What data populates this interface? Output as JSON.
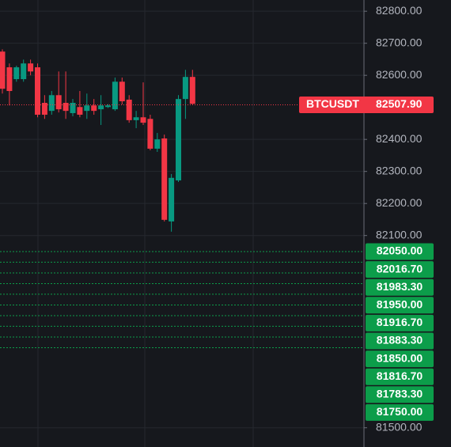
{
  "chart_data": {
    "type": "candlestick",
    "up_color": "#089981",
    "down_color": "#f23645",
    "open": [
      82674,
      82625,
      82588,
      82588,
      82637,
      82625,
      82514,
      82489,
      82538,
      82514,
      82482,
      82501,
      82489,
      82506,
      82494,
      82501,
      82494,
      82580,
      82524,
      82460,
      82469,
      82464,
      82371,
      82403,
      82144,
      82272,
      82526,
      82595
    ],
    "high": [
      82681,
      82637,
      82630,
      82649,
      82649,
      82637,
      82538,
      82551,
      82612,
      82612,
      82526,
      82551,
      82543,
      82526,
      82538,
      82510,
      82593,
      82593,
      82538,
      82489,
      82578,
      82477,
      82420,
      82415,
      82292,
      82538,
      82617,
      82617
    ],
    "low": [
      82543,
      82506,
      82580,
      82580,
      82600,
      82469,
      82464,
      82477,
      82484,
      82464,
      82472,
      82469,
      82464,
      82477,
      82445,
      82498,
      82489,
      82509,
      82452,
      82435,
      82445,
      82366,
      82361,
      82144,
      82112,
      82267,
      82464,
      82509
    ],
    "close": [
      82558,
      82551,
      82625,
      82637,
      82612,
      82477,
      82477,
      82538,
      82494,
      82489,
      82514,
      82477,
      82506,
      82489,
      82506,
      82506,
      82580,
      82519,
      82460,
      82469,
      82452,
      82371,
      82400,
      82149,
      82280,
      82526,
      82595,
      82511
    ],
    "ylim": [
      81440,
      82835
    ],
    "yticks": [
      {
        "value": 81500,
        "label": "81500.00"
      },
      {
        "value": 82100,
        "label": "82100.00"
      },
      {
        "value": 82200,
        "label": "82200.00"
      },
      {
        "value": 82300,
        "label": "82300.00"
      },
      {
        "value": 82400,
        "label": "82400.00"
      },
      {
        "value": 82600,
        "label": "82600.00"
      },
      {
        "value": 82700,
        "label": "82700.00"
      },
      {
        "value": 82800,
        "label": "82800.00"
      }
    ],
    "grid": true,
    "last_price": {
      "symbol": "BTCUSDT",
      "value": 82507.9,
      "label": "82507.90",
      "color": "#f23645"
    },
    "level_color": "#0c9d4a",
    "levels": [
      {
        "value": 82050,
        "label": "82050.00"
      },
      {
        "value": 82016.7,
        "label": "82016.70"
      },
      {
        "value": 81983.3,
        "label": "81983.30"
      },
      {
        "value": 81950,
        "label": "81950.00"
      },
      {
        "value": 81916.7,
        "label": "81916.70"
      },
      {
        "value": 81883.3,
        "label": "81883.30"
      },
      {
        "value": 81850,
        "label": "81850.00"
      },
      {
        "value": 81816.7,
        "label": "81816.70"
      },
      {
        "value": 81783.3,
        "label": "81783.30"
      },
      {
        "value": 81750,
        "label": "81750.00"
      }
    ]
  }
}
